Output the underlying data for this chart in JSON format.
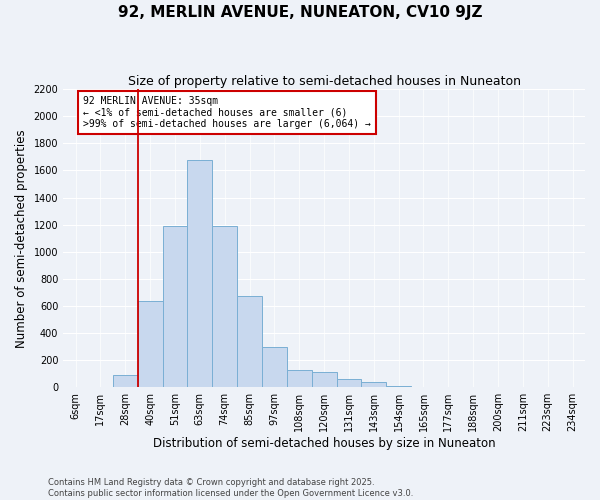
{
  "title": "92, MERLIN AVENUE, NUNEATON, CV10 9JZ",
  "subtitle": "Size of property relative to semi-detached houses in Nuneaton",
  "xlabel": "Distribution of semi-detached houses by size in Nuneaton",
  "ylabel": "Number of semi-detached properties",
  "bin_labels": [
    "6sqm",
    "17sqm",
    "28sqm",
    "40sqm",
    "51sqm",
    "63sqm",
    "74sqm",
    "85sqm",
    "97sqm",
    "108sqm",
    "120sqm",
    "131sqm",
    "143sqm",
    "154sqm",
    "165sqm",
    "177sqm",
    "188sqm",
    "200sqm",
    "211sqm",
    "223sqm",
    "234sqm"
  ],
  "bar_heights": [
    5,
    5,
    90,
    640,
    1190,
    1680,
    1190,
    670,
    300,
    130,
    110,
    60,
    35,
    10,
    5,
    5,
    0,
    0,
    0,
    0,
    5
  ],
  "bar_color": "#c8d8ee",
  "bar_edge_color": "#7aafd4",
  "ylim": [
    0,
    2200
  ],
  "yticks": [
    0,
    200,
    400,
    600,
    800,
    1000,
    1200,
    1400,
    1600,
    1800,
    2000,
    2200
  ],
  "vline_x": 2.5,
  "property_line_label": "92 MERLIN AVENUE: 35sqm",
  "annotation_line1": "← <1% of semi-detached houses are smaller (6)",
  "annotation_line2": ">99% of semi-detached houses are larger (6,064) →",
  "annotation_box_color": "#ffffff",
  "annotation_box_edge": "#cc0000",
  "vline_color": "#cc0000",
  "footer_line1": "Contains HM Land Registry data © Crown copyright and database right 2025.",
  "footer_line2": "Contains public sector information licensed under the Open Government Licence v3.0.",
  "background_color": "#eef2f8",
  "grid_color": "#ffffff",
  "title_fontsize": 11,
  "subtitle_fontsize": 9,
  "axis_label_fontsize": 8.5,
  "tick_fontsize": 7,
  "annotation_fontsize": 7,
  "footer_fontsize": 6
}
